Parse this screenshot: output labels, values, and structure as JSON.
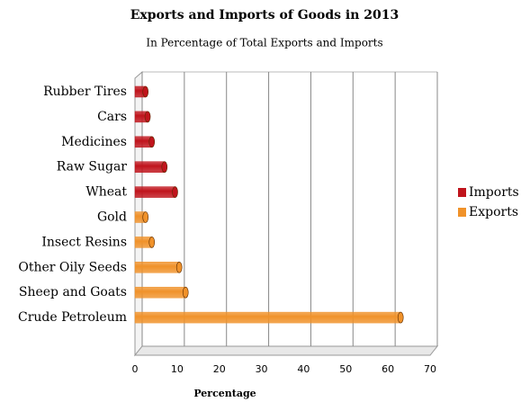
{
  "chart_data": {
    "type": "bar",
    "orientation": "horizontal",
    "title": "Exports and Imports of Goods in 2013",
    "subtitle": "In Percentage of Total Exports and Imports",
    "x_label": "Percentage",
    "categories": [
      "Rubber Tires",
      "Cars",
      "Medicines",
      "Raw Sugar",
      "Wheat",
      "Gold",
      "Insect Resins",
      "Other Oily Seeds",
      "Sheep and Goats",
      "Crude Petroleum"
    ],
    "series": [
      {
        "name": "Imports",
        "color": "#c0141c",
        "values": [
          2.5,
          3,
          4,
          7,
          9.5,
          null,
          null,
          null,
          null,
          null
        ]
      },
      {
        "name": "Exports",
        "color": "#f0922a",
        "values": [
          null,
          null,
          null,
          null,
          null,
          2.5,
          4,
          10.5,
          12,
          63
        ]
      }
    ],
    "xlim": [
      0,
      70
    ],
    "xticks": [
      0,
      10,
      20,
      30,
      40,
      50,
      60,
      70
    ],
    "grid": true,
    "legend": "right"
  }
}
